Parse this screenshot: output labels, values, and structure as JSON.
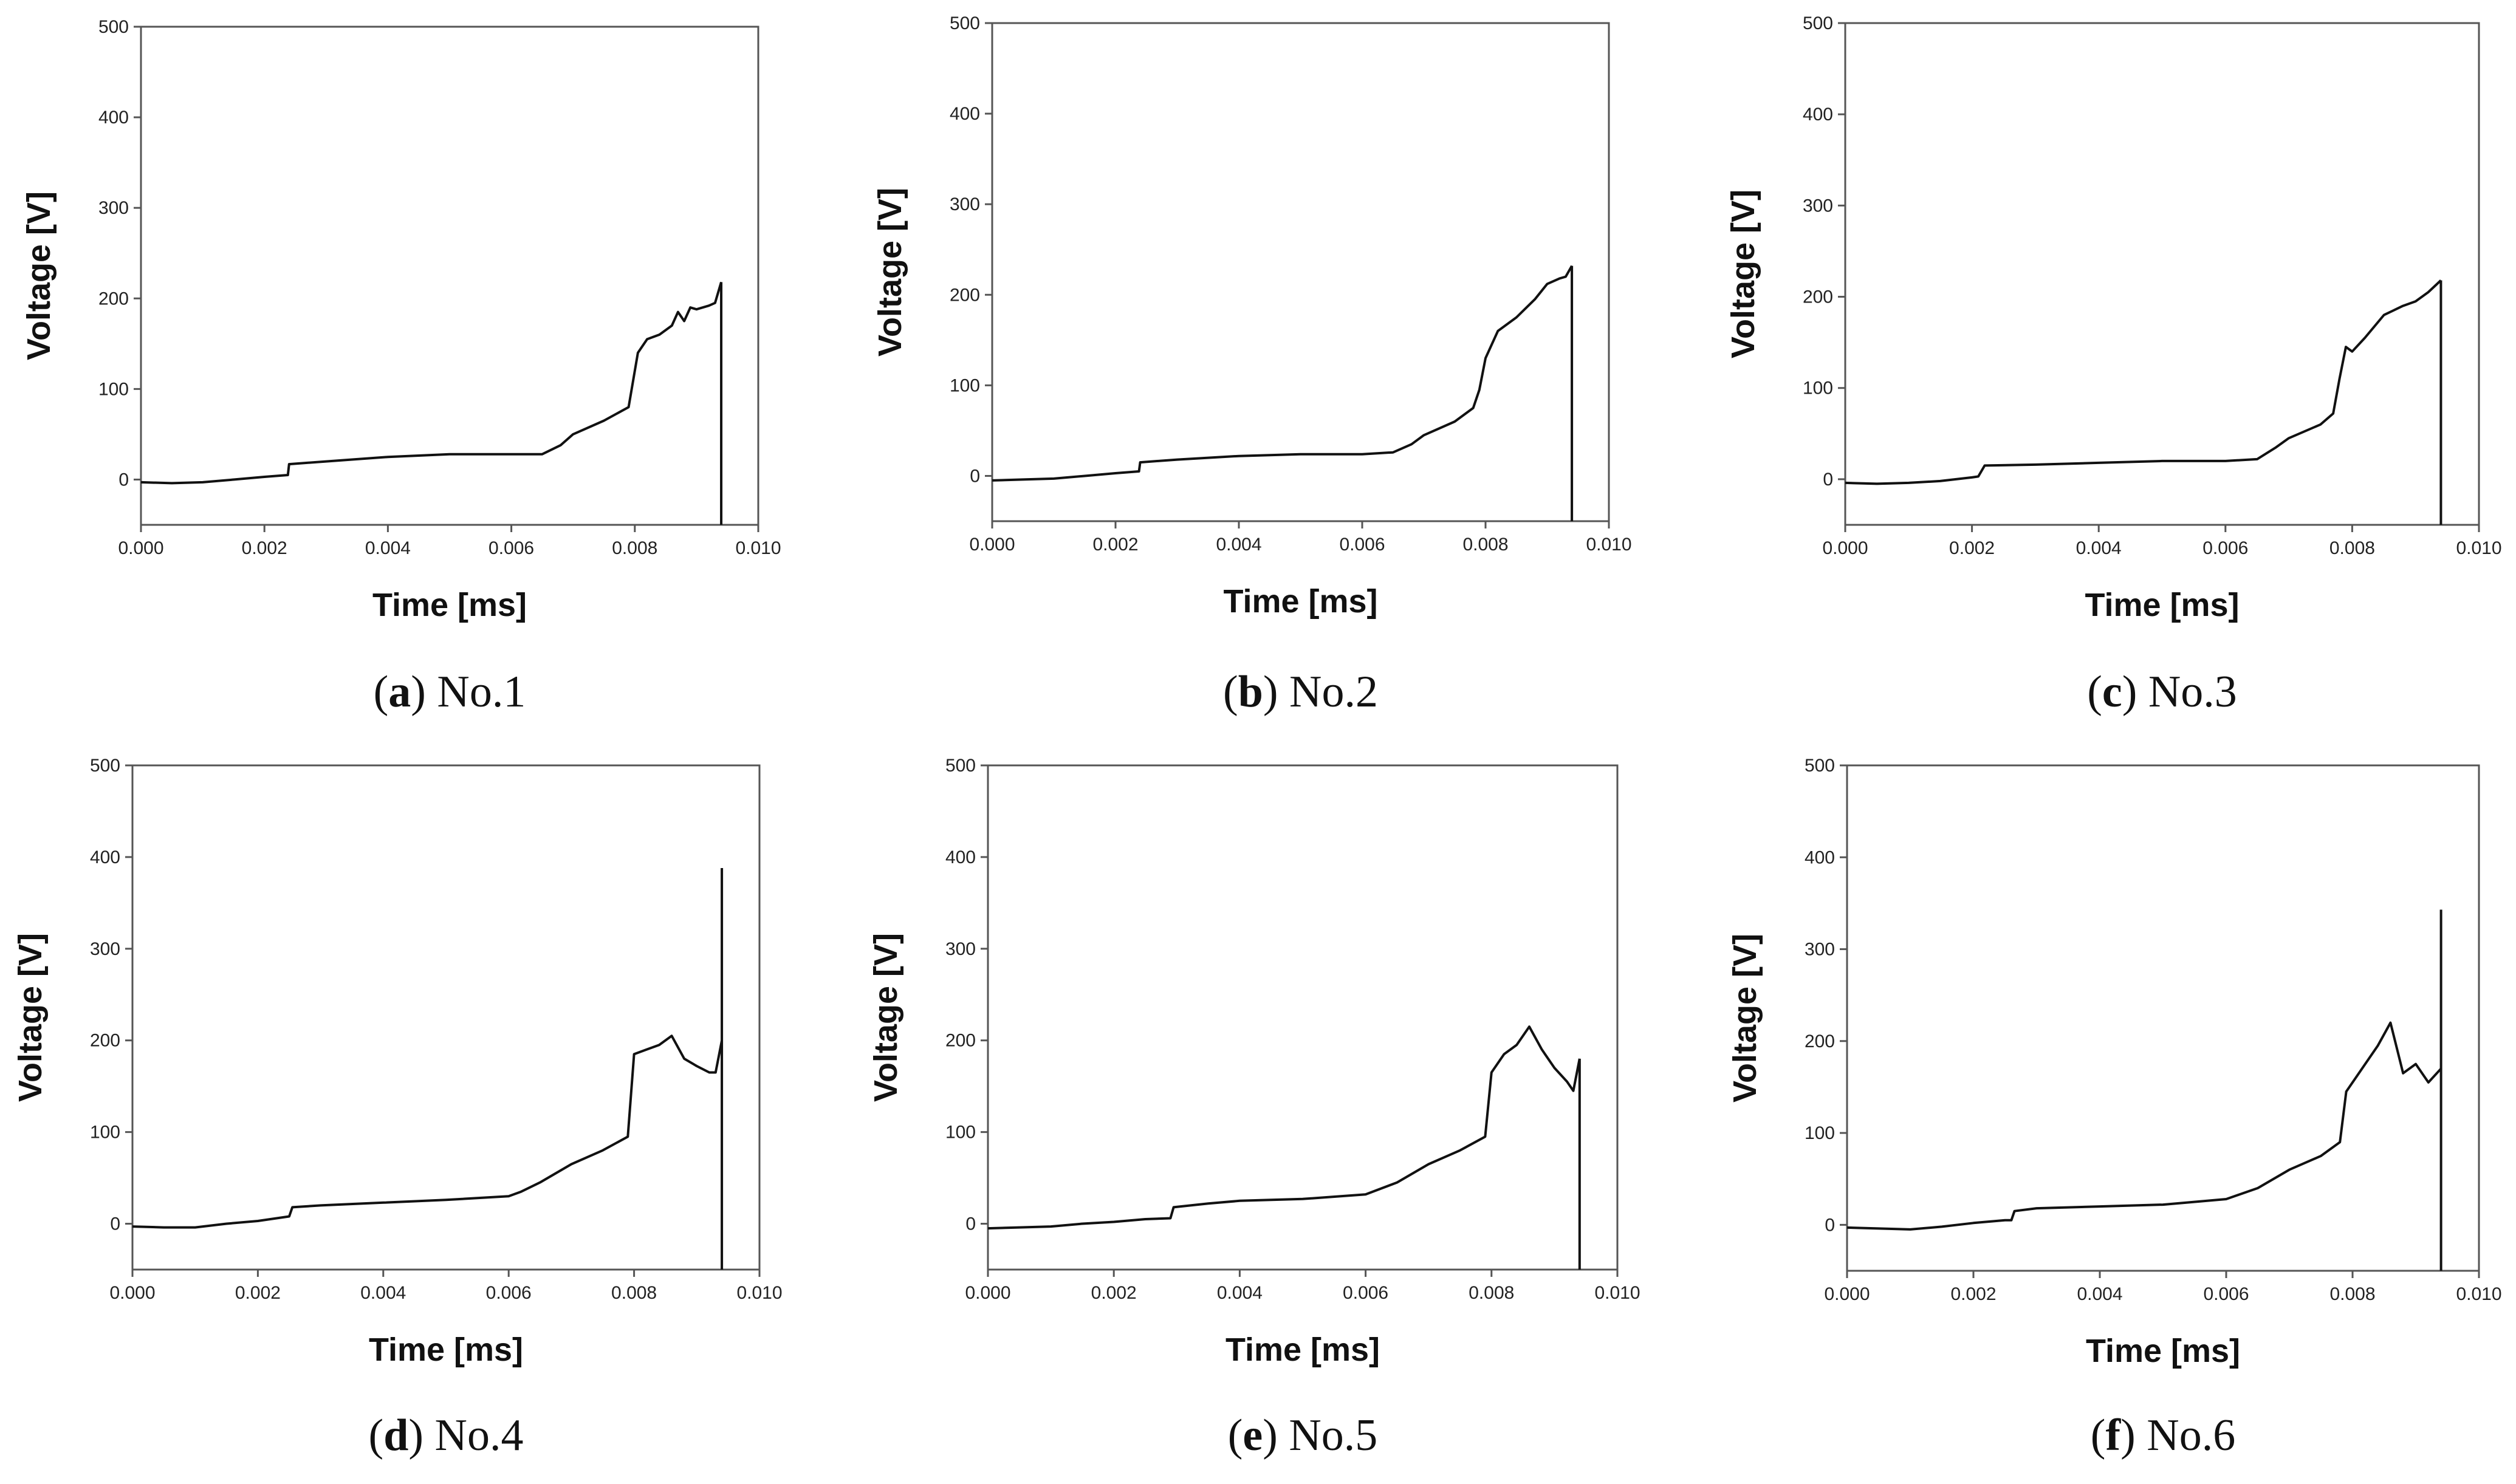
{
  "chart_data": [
    {
      "type": "line",
      "caption_letter": "a",
      "caption_text": "No.1",
      "xlabel": "Time [ms]",
      "ylabel": "Voltage [V]",
      "xlim": [
        0,
        0.01
      ],
      "ylim": [
        -50,
        500
      ],
      "xticks": [
        "0.000",
        "0.002",
        "0.004",
        "0.006",
        "0.008",
        "0.010"
      ],
      "yticks": [
        "0",
        "100",
        "200",
        "300",
        "400",
        "500"
      ],
      "x": [
        0,
        0.0005,
        0.001,
        0.0015,
        0.002,
        0.00238,
        0.0024,
        0.003,
        0.004,
        0.005,
        0.006,
        0.0065,
        0.0068,
        0.007,
        0.0075,
        0.0079,
        0.00805,
        0.0082,
        0.0084,
        0.0086,
        0.0087,
        0.0088,
        0.0089,
        0.009,
        0.0092,
        0.0093,
        0.0094
      ],
      "y": [
        -3,
        -4,
        -3,
        0,
        3,
        5,
        17,
        20,
        25,
        28,
        28,
        28,
        38,
        50,
        65,
        80,
        140,
        155,
        160,
        170,
        185,
        175,
        190,
        188,
        192,
        195,
        218
      ],
      "spike": {
        "x": 0.0094,
        "y_top": 218,
        "y_bottom": -50
      }
    },
    {
      "type": "line",
      "caption_letter": "b",
      "caption_text": "No.2",
      "xlabel": "Time [ms]",
      "ylabel": "Voltage [V]",
      "xlim": [
        0,
        0.01
      ],
      "ylim": [
        -50,
        500
      ],
      "xticks": [
        "0.000",
        "0.002",
        "0.004",
        "0.006",
        "0.008",
        "0.010"
      ],
      "yticks": [
        "0",
        "100",
        "200",
        "300",
        "400",
        "500"
      ],
      "x": [
        0,
        0.0005,
        0.001,
        0.0015,
        0.002,
        0.00238,
        0.0024,
        0.003,
        0.004,
        0.005,
        0.006,
        0.0065,
        0.0068,
        0.007,
        0.0075,
        0.0078,
        0.0079,
        0.008,
        0.0082,
        0.0085,
        0.0088,
        0.009,
        0.0092,
        0.0093,
        0.0094
      ],
      "y": [
        -5,
        -4,
        -3,
        0,
        3,
        5,
        15,
        18,
        22,
        24,
        24,
        26,
        35,
        45,
        60,
        75,
        95,
        130,
        160,
        175,
        195,
        212,
        218,
        220,
        232
      ],
      "spike": {
        "x": 0.0094,
        "y_top": 232,
        "y_bottom": -50
      }
    },
    {
      "type": "line",
      "caption_letter": "c",
      "caption_text": "No.3",
      "xlabel": "Time [ms]",
      "ylabel": "Voltage [V]",
      "xlim": [
        0,
        0.01
      ],
      "ylim": [
        -50,
        500
      ],
      "xticks": [
        "0.000",
        "0.002",
        "0.004",
        "0.006",
        "0.008",
        "0.010"
      ],
      "yticks": [
        "0",
        "100",
        "200",
        "300",
        "400",
        "500"
      ],
      "x": [
        0,
        0.0005,
        0.001,
        0.0015,
        0.002,
        0.0021,
        0.0022,
        0.003,
        0.004,
        0.005,
        0.006,
        0.0065,
        0.0068,
        0.007,
        0.0075,
        0.0077,
        0.0078,
        0.0079,
        0.008,
        0.0082,
        0.0085,
        0.0088,
        0.009,
        0.0092,
        0.0094
      ],
      "y": [
        -4,
        -5,
        -4,
        -2,
        2,
        3,
        15,
        16,
        18,
        20,
        20,
        22,
        35,
        45,
        60,
        72,
        110,
        145,
        140,
        155,
        180,
        190,
        195,
        205,
        218
      ],
      "spike": {
        "x": 0.0094,
        "y_top": 218,
        "y_bottom": -50
      }
    },
    {
      "type": "line",
      "caption_letter": "d",
      "caption_text": "No.4",
      "xlabel": "Time [ms]",
      "ylabel": "Voltage [V]",
      "xlim": [
        0,
        0.01
      ],
      "ylim": [
        -50,
        500
      ],
      "xticks": [
        "0.000",
        "0.002",
        "0.004",
        "0.006",
        "0.008",
        "0.010"
      ],
      "yticks": [
        "0",
        "100",
        "200",
        "300",
        "400",
        "500"
      ],
      "x": [
        0,
        0.0005,
        0.001,
        0.0015,
        0.002,
        0.0025,
        0.00255,
        0.003,
        0.004,
        0.005,
        0.006,
        0.0062,
        0.0065,
        0.007,
        0.0075,
        0.0079,
        0.008,
        0.0082,
        0.0084,
        0.0086,
        0.0088,
        0.009,
        0.0092,
        0.0093,
        0.0094
      ],
      "y": [
        -3,
        -4,
        -4,
        0,
        3,
        8,
        18,
        20,
        23,
        26,
        30,
        35,
        45,
        65,
        80,
        95,
        185,
        190,
        195,
        205,
        180,
        172,
        165,
        165,
        200
      ],
      "spike": {
        "x": 0.0094,
        "y_top": 388,
        "y_bottom": -50
      }
    },
    {
      "type": "line",
      "caption_letter": "e",
      "caption_text": "No.5",
      "xlabel": "Time [ms]",
      "ylabel": "Voltage [V]",
      "xlim": [
        0,
        0.01
      ],
      "ylim": [
        -50,
        500
      ],
      "xticks": [
        "0.000",
        "0.002",
        "0.004",
        "0.006",
        "0.008",
        "0.010"
      ],
      "yticks": [
        "0",
        "100",
        "200",
        "300",
        "400",
        "500"
      ],
      "x": [
        0,
        0.0005,
        0.001,
        0.0015,
        0.002,
        0.0025,
        0.0029,
        0.00295,
        0.0035,
        0.004,
        0.005,
        0.006,
        0.0065,
        0.007,
        0.0075,
        0.0079,
        0.008,
        0.0082,
        0.0084,
        0.0086,
        0.0088,
        0.009,
        0.0092,
        0.0093,
        0.0094
      ],
      "y": [
        -5,
        -4,
        -3,
        0,
        2,
        5,
        6,
        18,
        22,
        25,
        27,
        32,
        45,
        65,
        80,
        95,
        165,
        185,
        195,
        215,
        190,
        170,
        155,
        145,
        180
      ],
      "spike": {
        "x": 0.0094,
        "y_top": 180,
        "y_bottom": -50
      }
    },
    {
      "type": "line",
      "caption_letter": "f",
      "caption_text": "No.6",
      "xlabel": "Time [ms]",
      "ylabel": "Voltage [V]",
      "xlim": [
        0,
        0.01
      ],
      "ylim": [
        -50,
        500
      ],
      "xticks": [
        "0.000",
        "0.002",
        "0.004",
        "0.006",
        "0.008",
        "0.010"
      ],
      "yticks": [
        "0",
        "100",
        "200",
        "300",
        "400",
        "500"
      ],
      "x": [
        0,
        0.0005,
        0.001,
        0.0015,
        0.002,
        0.0025,
        0.0026,
        0.00265,
        0.003,
        0.004,
        0.005,
        0.006,
        0.0065,
        0.007,
        0.0075,
        0.0078,
        0.0079,
        0.008,
        0.0082,
        0.0084,
        0.0086,
        0.0088,
        0.009,
        0.0092,
        0.0094
      ],
      "y": [
        -3,
        -4,
        -5,
        -2,
        2,
        5,
        5,
        15,
        18,
        20,
        22,
        28,
        40,
        60,
        75,
        90,
        145,
        155,
        175,
        195,
        220,
        165,
        175,
        155,
        170
      ],
      "spike": {
        "x": 0.0094,
        "y_top": 343,
        "y_bottom": -50
      }
    }
  ]
}
